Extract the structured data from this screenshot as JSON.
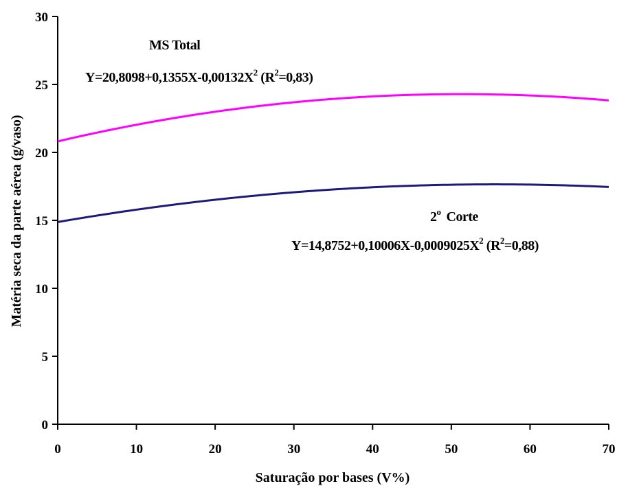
{
  "chart_data": {
    "type": "line",
    "xlabel": "Saturação por bases (V%)",
    "ylabel": "Matéria seca da parte aérea (g/vaso)",
    "xlim": [
      0,
      70
    ],
    "ylim": [
      0,
      30
    ],
    "xticks": [
      "0",
      "10",
      "20",
      "30",
      "40",
      "50",
      "60",
      "70"
    ],
    "yticks": [
      "0",
      "5",
      "10",
      "15",
      "20",
      "25",
      "30"
    ],
    "grid": false,
    "series": [
      {
        "name": "MS Total",
        "color": "#FF00FF",
        "equation": {
          "prefix": "Y=20,8098+0,1355X-0,00132X",
          "exp": "2",
          "mid": " (R",
          "r_exp": "2",
          "suffix": "=0,83)"
        },
        "coefficients": [
          20.8098,
          0.1355,
          -0.00132
        ],
        "x": [
          0,
          10,
          20,
          30,
          40,
          50,
          60,
          70
        ],
        "y": [
          20.81,
          22.03,
          22.99,
          23.69,
          24.12,
          24.29,
          24.19,
          23.82
        ]
      },
      {
        "name": "Corte",
        "label_prefix": "2",
        "label_sup": "o",
        "color": "#1F1A7A",
        "equation": {
          "prefix": "Y=14,8752+0,10006X-0,0009025X",
          "exp": "2",
          "mid": " (R",
          "r_exp": "2",
          "suffix": "=0,88)"
        },
        "coefficients": [
          14.8752,
          0.10006,
          -0.0009025
        ],
        "x": [
          0,
          10,
          20,
          30,
          40,
          50,
          60,
          70
        ],
        "y": [
          14.88,
          15.79,
          16.52,
          17.06,
          17.43,
          17.62,
          17.63,
          17.46
        ]
      }
    ]
  }
}
